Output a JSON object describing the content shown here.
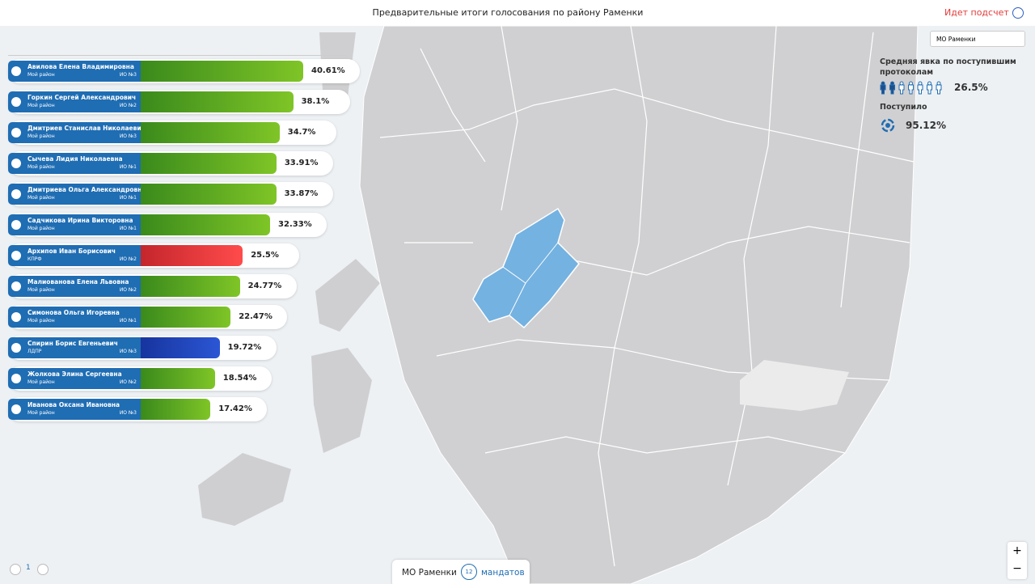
{
  "header": {
    "title": "Предварительные итоги голосования по району Раменки",
    "status": "Идет подсчет"
  },
  "district_select": "МО Раменки",
  "turnout": {
    "label": "Средняя явка по поступившим протоколам",
    "value": "26.5%"
  },
  "received": {
    "label": "Поступило",
    "value": "95.12%"
  },
  "candidates": {
    "scale_max": 100,
    "items": [
      {
        "name": "Авилова Елена Владимировна",
        "party": "Мой район",
        "district": "ИО №3",
        "value": 40.61,
        "value_label": "40.61%",
        "color": [
          "#3a8a1c",
          "#7fc527"
        ]
      },
      {
        "name": "Горкин Сергей Александрович",
        "party": "Мой район",
        "district": "ИО №2",
        "value": 38.1,
        "value_label": "38.1%",
        "color": [
          "#3a8a1c",
          "#7fc527"
        ]
      },
      {
        "name": "Дмитриев Станислав Николаевич",
        "party": "Мой район",
        "district": "ИО №3",
        "value": 34.7,
        "value_label": "34.7%",
        "color": [
          "#3a8a1c",
          "#7fc527"
        ]
      },
      {
        "name": "Сычева Лидия Николаевна",
        "party": "Мой район",
        "district": "ИО №1",
        "value": 33.91,
        "value_label": "33.91%",
        "color": [
          "#3a8a1c",
          "#7fc527"
        ]
      },
      {
        "name": "Дмитриева Ольга Александровна",
        "party": "Мой район",
        "district": "ИО №1",
        "value": 33.87,
        "value_label": "33.87%",
        "color": [
          "#3a8a1c",
          "#7fc527"
        ]
      },
      {
        "name": "Садчикова Ирина Викторовна",
        "party": "Мой район",
        "district": "ИО №1",
        "value": 32.33,
        "value_label": "32.33%",
        "color": [
          "#3a8a1c",
          "#7fc527"
        ]
      },
      {
        "name": "Архипов Иван Борисович",
        "party": "КПРФ",
        "district": "ИО №2",
        "value": 25.5,
        "value_label": "25.5%",
        "color": [
          "#c4262c",
          "#ff4b4b"
        ]
      },
      {
        "name": "Малиованова Елена Львовна",
        "party": "Мой район",
        "district": "ИО №2",
        "value": 24.77,
        "value_label": "24.77%",
        "color": [
          "#3a8a1c",
          "#7fc527"
        ]
      },
      {
        "name": "Симонова Ольга Игоревна",
        "party": "Мой район",
        "district": "ИО №1",
        "value": 22.47,
        "value_label": "22.47%",
        "color": [
          "#3a8a1c",
          "#7fc527"
        ]
      },
      {
        "name": "Спирин Борис Евгеньевич",
        "party": "ЛДПР",
        "district": "ИО №3",
        "value": 19.72,
        "value_label": "19.72%",
        "color": [
          "#17349e",
          "#2b56d4"
        ]
      },
      {
        "name": "Жолкова Элина Сергеевна",
        "party": "Мой район",
        "district": "ИО №2",
        "value": 18.54,
        "value_label": "18.54%",
        "color": [
          "#3a8a1c",
          "#7fc527"
        ]
      },
      {
        "name": "Иванова Оксана Ивановна",
        "party": "Мой район",
        "district": "ИО №3",
        "value": 17.42,
        "value_label": "17.42%",
        "color": [
          "#3a8a1c",
          "#7fc527"
        ]
      }
    ]
  },
  "pagination": {
    "page": "1"
  },
  "footer_tab": {
    "district": "МО Раменки",
    "mandates": "12",
    "mandates_label": "мандатов"
  },
  "zoom": {
    "in": "+",
    "out": "−"
  }
}
